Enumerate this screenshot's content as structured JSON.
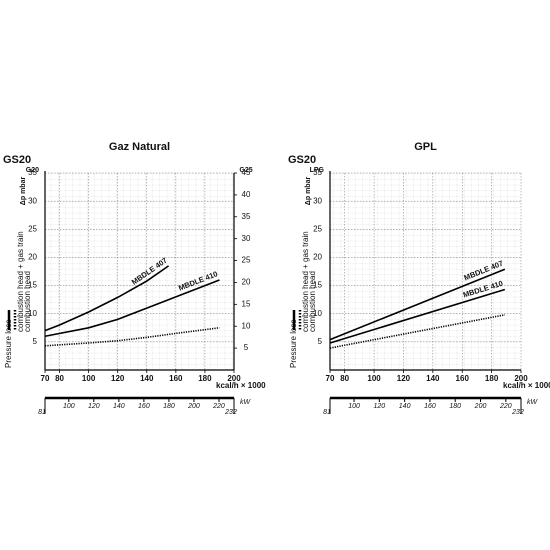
{
  "chart_data": [
    {
      "type": "line",
      "title": "Gaz Natural",
      "gas": "GS20",
      "y_header": "G20",
      "y2_header": "G25",
      "ylabel": "Δp mbar",
      "xlabel": "kcal/h × 1000",
      "x2label": "kW",
      "legend_title": "Pressure loss",
      "legend_items": [
        "combustion head + gas train",
        "combustion head"
      ],
      "xlim": [
        70,
        200
      ],
      "xticks": [
        70,
        80,
        100,
        120,
        140,
        160,
        180,
        200
      ],
      "ylim": [
        0,
        35
      ],
      "yticks": [
        5,
        10,
        15,
        20,
        25,
        30,
        35
      ],
      "y2lim": [
        0,
        45
      ],
      "y2ticks": [
        5,
        10,
        15,
        20,
        25,
        30,
        35,
        40,
        45
      ],
      "x2lim": [
        81,
        232
      ],
      "x2ticks": [
        81,
        100,
        120,
        140,
        160,
        180,
        200,
        220,
        232
      ],
      "grid": true,
      "series": [
        {
          "name": "MBDLE 407",
          "color": "#000000",
          "style": "solid",
          "x": [
            70,
            80,
            100,
            120,
            140,
            155
          ],
          "values": [
            7,
            8,
            10.3,
            12.9,
            15.8,
            18.5
          ]
        },
        {
          "name": "MBDLE 410",
          "color": "#000000",
          "style": "solid",
          "x": [
            70,
            100,
            120,
            140,
            160,
            190
          ],
          "values": [
            6,
            7.5,
            9,
            11,
            13,
            16
          ]
        },
        {
          "color": "#000000",
          "style": "dotted",
          "x": [
            70,
            100,
            120,
            140,
            160,
            190
          ],
          "values": [
            4.3,
            4.8,
            5.2,
            5.8,
            6.5,
            7.5
          ]
        }
      ]
    },
    {
      "type": "line",
      "title": "GPL",
      "gas": "GS20",
      "y_header": "LPG",
      "ylabel": "Δp mbar",
      "xlabel": "kcal/h × 1000",
      "x2label": "kW",
      "legend_title": "Pressure loss",
      "legend_items": [
        "combustion head + gas train",
        "combustion head"
      ],
      "xlim": [
        70,
        200
      ],
      "xticks": [
        70,
        80,
        100,
        120,
        140,
        160,
        180,
        200
      ],
      "ylim": [
        0,
        35
      ],
      "yticks": [
        5,
        10,
        15,
        20,
        25,
        30,
        35
      ],
      "x2lim": [
        81,
        232
      ],
      "x2ticks": [
        81,
        100,
        120,
        140,
        160,
        180,
        200,
        220,
        232
      ],
      "grid": true,
      "series": [
        {
          "name": "MBDLE 407",
          "color": "#000000",
          "style": "solid",
          "x": [
            70,
            189
          ],
          "values": [
            5.4,
            17.9
          ]
        },
        {
          "name": "MBDLE 410",
          "color": "#000000",
          "style": "solid",
          "x": [
            70,
            189
          ],
          "values": [
            4.8,
            14.3
          ]
        },
        {
          "color": "#000000",
          "style": "dotted",
          "x": [
            70,
            189
          ],
          "values": [
            3.9,
            9.8
          ]
        }
      ]
    }
  ]
}
